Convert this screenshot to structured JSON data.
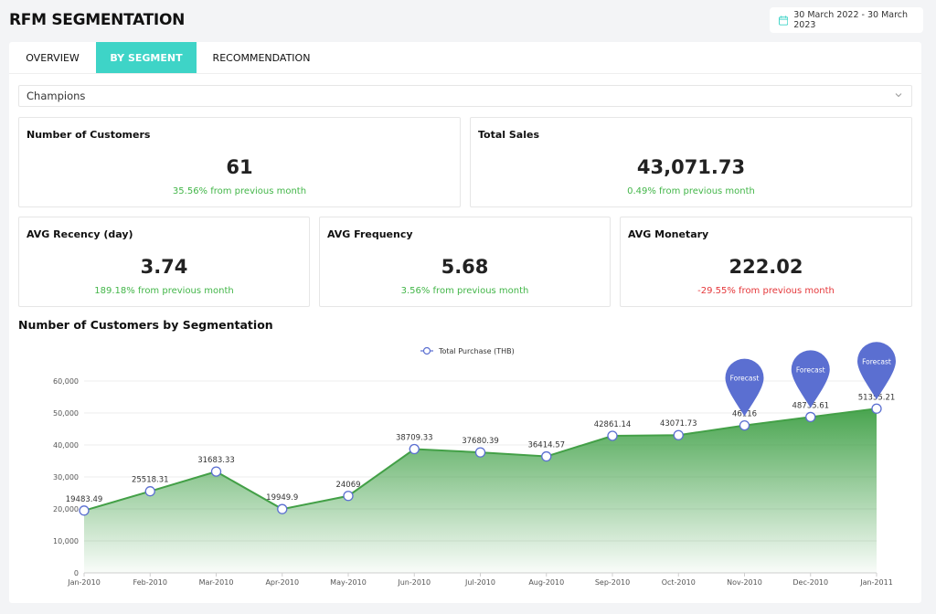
{
  "header": {
    "title": "RFM SEGMENTATION",
    "date_range": "30 March 2022 - 30 March 2023"
  },
  "tabs": [
    {
      "label": "OVERVIEW",
      "active": false
    },
    {
      "label": "BY SEGMENT",
      "active": true
    },
    {
      "label": "RECOMMENDATION",
      "active": false
    }
  ],
  "segment_select": {
    "value": "Champions"
  },
  "cards": {
    "customers": {
      "label": "Number of Customers",
      "value": "61",
      "delta": "35.56% from previous month"
    },
    "sales": {
      "label": "Total Sales",
      "value": "43,071.73",
      "delta": "0.49% from previous month"
    },
    "recency": {
      "label": "AVG Recency (day)",
      "value": "3.74",
      "delta": "189.18% from previous month"
    },
    "frequency": {
      "label": "AVG Frequency",
      "value": "5.68",
      "delta": "3.56% from previous month"
    },
    "monetary": {
      "label": "AVG Monetary",
      "value": "222.02",
      "delta": "-29.55% from previous month"
    }
  },
  "colors": {
    "accent": "#3ed4c7",
    "positive": "#43b649",
    "negative": "#e5383b",
    "line": "#43a047",
    "forecast_pin": "#5b6fd1"
  },
  "chart_section": {
    "title": "Number of Customers by Segmentation"
  },
  "chart_data": {
    "type": "area",
    "legend_position": "top",
    "grid": true,
    "categories": [
      "Jan-2010",
      "Feb-2010",
      "Mar-2010",
      "Apr-2010",
      "May-2010",
      "Jun-2010",
      "Jul-2010",
      "Aug-2010",
      "Sep-2010",
      "Oct-2010",
      "Nov-2010",
      "Dec-2010",
      "Jan-2011"
    ],
    "series": [
      {
        "name": "Total Purchase (THB)",
        "values": [
          19483.49,
          25518.31,
          31683.33,
          19949.9,
          24069,
          38709.33,
          37680.39,
          36414.57,
          42861.14,
          43071.73,
          46116,
          48735.61,
          51355.21
        ],
        "labels": [
          "19483.49",
          "25518.31",
          "31683.33",
          "19949.9",
          "24069",
          "38709.33",
          "37680.39",
          "36414.57",
          "42861.14",
          "43071.73",
          "46116",
          "48735.61",
          "51355.21"
        ]
      }
    ],
    "forecast_points": [
      10,
      11,
      12
    ],
    "forecast_label": "Forecast",
    "ylim": [
      0,
      60000
    ],
    "yticks": [
      "0",
      "10,000",
      "20,000",
      "30,000",
      "40,000",
      "50,000",
      "60,000"
    ]
  }
}
